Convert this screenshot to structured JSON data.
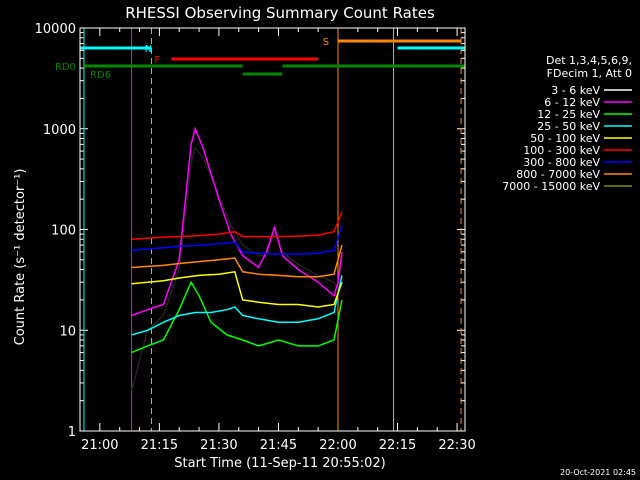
{
  "chart_data": {
    "type": "line",
    "title": "RHESSI Observing Summary Count Rates",
    "xlabel": "Start Time (11-Sep-11 20:55:02)",
    "ylabel": "Count Rate (s⁻¹ detector⁻¹)",
    "yscale": "log",
    "ylim": [
      1,
      10000
    ],
    "xlim": [
      "20:55",
      "22:32"
    ],
    "x_ticks": [
      "21:00",
      "21:15",
      "21:30",
      "21:45",
      "22:00",
      "22:15",
      "22:30"
    ],
    "y_ticks": [
      "1",
      "10",
      "100",
      "1000",
      "10000"
    ],
    "date_stamp": "20-Oct-2021 02:45",
    "legend_header": [
      "Det 1,3,4,5,6,9,",
      "FDecim 1, Att 0"
    ],
    "legend_position": "right",
    "flag_labels": {
      "N": "N",
      "F": "F",
      "S": "S",
      "RD0": "RD0",
      "RD6": "RD6"
    },
    "series": [
      {
        "name": "3 - 6 keV",
        "color": "#000000",
        "x": [
          "21:08",
          "21:12",
          "21:16",
          "21:20",
          "21:23",
          "21:24",
          "21:26",
          "21:30",
          "21:33",
          "21:36",
          "21:40",
          "21:42",
          "21:44",
          "21:46",
          "21:50",
          "21:55",
          "21:59",
          "22:00",
          "22:01"
        ],
        "values": [
          2.5,
          10,
          14,
          40,
          450,
          650,
          520,
          220,
          110,
          70,
          55,
          55,
          95,
          60,
          45,
          35,
          30,
          25,
          55
        ]
      },
      {
        "name": "6 - 12 keV",
        "color": "#ff00ff",
        "x": [
          "21:08",
          "21:12",
          "21:16",
          "21:20",
          "21:23",
          "21:24",
          "21:26",
          "21:30",
          "21:33",
          "21:36",
          "21:40",
          "21:42",
          "21:44",
          "21:46",
          "21:50",
          "21:55",
          "21:59",
          "22:00",
          "22:01"
        ],
        "values": [
          14,
          16,
          18,
          50,
          700,
          1000,
          650,
          200,
          90,
          55,
          42,
          60,
          105,
          55,
          40,
          30,
          22,
          30,
          60
        ]
      },
      {
        "name": "12 - 25 keV",
        "color": "#00ff00",
        "x": [
          "21:08",
          "21:12",
          "21:16",
          "21:20",
          "21:23",
          "21:25",
          "21:28",
          "21:32",
          "21:36",
          "21:40",
          "21:45",
          "21:50",
          "21:55",
          "21:59",
          "22:01"
        ],
        "values": [
          6,
          7,
          8,
          16,
          30,
          22,
          12,
          9,
          8,
          7,
          8,
          7,
          7,
          8,
          20
        ]
      },
      {
        "name": "25 - 50 keV",
        "color": "#00ffff",
        "x": [
          "21:08",
          "21:12",
          "21:16",
          "21:20",
          "21:24",
          "21:28",
          "21:32",
          "21:34",
          "21:36",
          "21:40",
          "21:45",
          "21:50",
          "21:55",
          "21:59",
          "22:01"
        ],
        "values": [
          9,
          10,
          12,
          14,
          15,
          15,
          16,
          17,
          14,
          13,
          12,
          12,
          13,
          15,
          35
        ]
      },
      {
        "name": "50 - 100 keV",
        "color": "#ffff00",
        "x": [
          "21:08",
          "21:12",
          "21:16",
          "21:20",
          "21:25",
          "21:30",
          "21:34",
          "21:36",
          "21:40",
          "21:45",
          "21:50",
          "21:55",
          "21:59",
          "22:01"
        ],
        "values": [
          29,
          30,
          31,
          33,
          35,
          36,
          38,
          20,
          19,
          18,
          18,
          17,
          18,
          30
        ]
      },
      {
        "name": "100 - 300 keV",
        "color": "#ff0000",
        "x": [
          "21:08",
          "21:12",
          "21:16",
          "21:20",
          "21:25",
          "21:30",
          "21:34",
          "21:36",
          "21:40",
          "21:45",
          "21:50",
          "21:55",
          "21:59",
          "22:01"
        ],
        "values": [
          80,
          82,
          84,
          85,
          87,
          90,
          95,
          85,
          85,
          85,
          86,
          88,
          95,
          150
        ]
      },
      {
        "name": "300 - 800 keV",
        "color": "#0000ff",
        "x": [
          "21:08",
          "21:12",
          "21:16",
          "21:20",
          "21:25",
          "21:30",
          "21:34",
          "21:36",
          "21:40",
          "21:45",
          "21:50",
          "21:55",
          "21:59",
          "22:01"
        ],
        "values": [
          62,
          64,
          66,
          68,
          70,
          72,
          75,
          60,
          58,
          57,
          57,
          58,
          62,
          110
        ]
      },
      {
        "name": "800 - 7000 keV",
        "color": "#ff8800",
        "x": [
          "21:08",
          "21:12",
          "21:16",
          "21:20",
          "21:25",
          "21:30",
          "21:34",
          "21:36",
          "21:40",
          "21:45",
          "21:50",
          "21:55",
          "21:59",
          "22:01"
        ],
        "values": [
          42,
          43,
          44,
          46,
          48,
          50,
          52,
          38,
          36,
          35,
          34,
          34,
          36,
          70
        ]
      },
      {
        "name": "7000 - 15000 keV",
        "color": "#888800",
        "x": [],
        "values": []
      }
    ],
    "flags": [
      {
        "label": "N",
        "color": "#00ffff",
        "segments": [
          [
            "20:55",
            "21:13"
          ],
          [
            "22:15",
            "22:32"
          ]
        ]
      },
      {
        "label": "F",
        "color": "#ff0000",
        "segments": [
          [
            "21:18",
            "21:55"
          ]
        ]
      },
      {
        "label": "S",
        "color": "#ff8800",
        "segments": [
          [
            "22:00",
            "22:31"
          ]
        ]
      },
      {
        "label": "RD0",
        "color": "#008800",
        "segments": [
          [
            "20:56",
            "21:36"
          ],
          [
            "21:46",
            "22:32"
          ]
        ]
      },
      {
        "label": "RD6",
        "color": "#008800",
        "segments": [
          [
            "21:36",
            "21:46"
          ]
        ]
      }
    ],
    "vertical_lines": [
      {
        "x": "20:56",
        "color": "#00ffff",
        "style": "solid"
      },
      {
        "x": "21:13",
        "color": "#00ffff",
        "style": "dashed"
      },
      {
        "x": "22:14",
        "color": "#00ffff",
        "style": "solid"
      },
      {
        "x": "22:32",
        "color": "#00ffff",
        "style": "dashed"
      },
      {
        "x": "22:00",
        "color": "#ff8800",
        "style": "solid"
      },
      {
        "x": "22:31",
        "color": "#ff8800",
        "style": "dashed"
      },
      {
        "x": "21:08",
        "color": "#ff00ff",
        "style": "solid"
      }
    ]
  }
}
